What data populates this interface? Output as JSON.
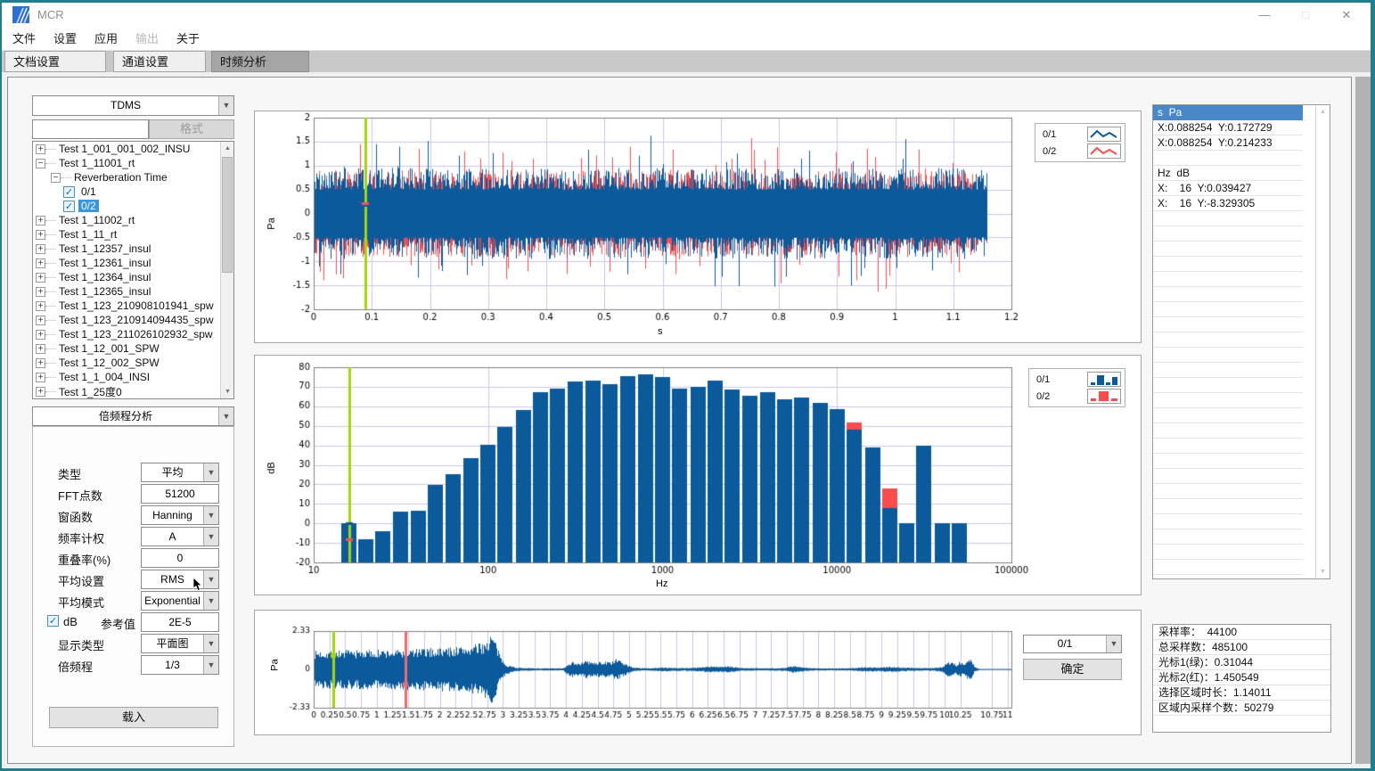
{
  "window": {
    "title": "MCR"
  },
  "menu": {
    "items": [
      {
        "label": "文件",
        "enabled": true
      },
      {
        "label": "设置",
        "enabled": true
      },
      {
        "label": "应用",
        "enabled": true
      },
      {
        "label": "输出",
        "enabled": false
      },
      {
        "label": "关于",
        "enabled": true
      }
    ]
  },
  "tabs": [
    {
      "label": "文档设置",
      "active": false
    },
    {
      "label": "通道设置",
      "active": false
    },
    {
      "label": "时频分析",
      "active": true
    }
  ],
  "sidebar": {
    "format_select_value": "TDMS",
    "filter_input_value": "",
    "format_button_label": "格式",
    "tree_items": [
      {
        "label": "Test 1_001_001_002_INSU",
        "depth": 0,
        "expander": "plus"
      },
      {
        "label": "Test 1_11001_rt",
        "depth": 0,
        "expander": "minus"
      },
      {
        "label": "Reverberation Time",
        "depth": 1,
        "expander": "minus"
      },
      {
        "label": "0/1",
        "depth": 2,
        "checked": true,
        "selected": false
      },
      {
        "label": "0/2",
        "depth": 2,
        "checked": true,
        "selected": true
      },
      {
        "label": "Test 1_11002_rt",
        "depth": 0,
        "expander": "plus"
      },
      {
        "label": "Test 1_11_rt",
        "depth": 0,
        "expander": "plus"
      },
      {
        "label": "Test 1_12357_insul",
        "depth": 0,
        "expander": "plus"
      },
      {
        "label": "Test 1_12361_insul",
        "depth": 0,
        "expander": "plus"
      },
      {
        "label": "Test 1_12364_insul",
        "depth": 0,
        "expander": "plus"
      },
      {
        "label": "Test 1_12365_insul",
        "depth": 0,
        "expander": "plus"
      },
      {
        "label": "Test 1_123_210908101941_spw",
        "depth": 0,
        "expander": "plus"
      },
      {
        "label": "Test 1_123_210914094435_spw",
        "depth": 0,
        "expander": "plus"
      },
      {
        "label": "Test 1_123_211026102932_spw",
        "depth": 0,
        "expander": "plus"
      },
      {
        "label": "Test 1_12_001_SPW",
        "depth": 0,
        "expander": "plus"
      },
      {
        "label": "Test 1_12_002_SPW",
        "depth": 0,
        "expander": "plus"
      },
      {
        "label": "Test 1_1_004_INSI",
        "depth": 0,
        "expander": "plus"
      },
      {
        "label": "Test 1_25度0",
        "depth": 0,
        "expander": "plus"
      }
    ],
    "analysis_select_value": "倍频程分析",
    "form_rows": [
      {
        "label": "类型",
        "control": "select",
        "value": "平均"
      },
      {
        "label": "FFT点数",
        "control": "input",
        "value": "51200"
      },
      {
        "label": "窗函数",
        "control": "select",
        "value": "Hanning"
      },
      {
        "label": "频率计权",
        "control": "select",
        "value": "A"
      },
      {
        "label": "重叠率(%)",
        "control": "input",
        "value": "0"
      },
      {
        "label": "平均设置",
        "control": "select",
        "value": "RMS"
      },
      {
        "label": "平均模式",
        "control": "select",
        "value": "Exponential"
      },
      {
        "checkbox_label": "dB",
        "checkbox_checked": true,
        "label": "参考值",
        "control": "input",
        "value": "2E-5"
      },
      {
        "label": "显示类型",
        "control": "select",
        "value": "平面图"
      },
      {
        "label": "倍频程",
        "control": "select",
        "value": "1/3"
      }
    ],
    "load_button_label": "载入"
  },
  "right_panel": {
    "rows": [
      {
        "text": "s  Pa",
        "selected": true
      },
      {
        "text": "X:0.088254  Y:0.172729",
        "selected": false
      },
      {
        "text": "X:0.088254  Y:0.214233",
        "selected": false
      },
      {
        "text": "",
        "selected": false
      },
      {
        "text": "Hz  dB",
        "selected": false
      },
      {
        "text": "X:    16  Y:0.039427",
        "selected": false
      },
      {
        "text": "X:    16  Y:-8.329305",
        "selected": false
      }
    ],
    "empty_rows": 24
  },
  "info_panel": {
    "rows": [
      "采样率：  44100",
      "总采样数：485100",
      "光标1(绿)：0.31044",
      "光标2(红)：1.450549",
      "选择区域时长：1.14011",
      "区域内采样个数：50279"
    ]
  },
  "bottom_controls": {
    "channel_select_value": "0/1",
    "confirm_button_label": "确定"
  },
  "colors": {
    "window_border": "#1f7f8e",
    "series_blue": "#0b5a9b",
    "series_red": "#f94d4d",
    "cursor_green": "#a4d40a",
    "cursor_red": "#ee6b6b",
    "grid": "#c9c9e8",
    "axis": "#7f7f7f",
    "selection_blue": "#3a95e4",
    "header_blue": "#4a87c7"
  },
  "chart_data": [
    {
      "type": "line",
      "name": "time-waveform",
      "xlabel": "s",
      "ylabel": "Pa",
      "xlim": [
        0,
        1.2
      ],
      "ylim": [
        -2,
        2
      ],
      "xtick_labels": [
        "0",
        "0.1",
        "0.2",
        "0.3",
        "0.4",
        "0.5",
        "0.6",
        "0.7",
        "0.8",
        "0.9",
        "1",
        "1.1",
        "1.2"
      ],
      "ytick_labels": [
        "2",
        "1.5",
        "1",
        "0.5",
        "0",
        "-0.5",
        "-1",
        "-1.5",
        "-2"
      ],
      "grid": true,
      "legend": [
        {
          "name": "0/1",
          "color": "#0b5a9b",
          "style": "line"
        },
        {
          "name": "0/2",
          "color": "#f94d4d",
          "style": "line"
        }
      ],
      "signal_end": 1.16,
      "cursor": {
        "x": 0.088254,
        "color": "#a4d40a",
        "points": [
          {
            "y": 0.172729,
            "color": "#0b5a9b"
          },
          {
            "y": 0.214233,
            "color": "#f94d4d"
          }
        ]
      }
    },
    {
      "type": "bar",
      "name": "octave-spectrum",
      "xlabel": "Hz",
      "ylabel": "dB",
      "xscale": "log",
      "xlim": [
        10,
        100000
      ],
      "ylim": [
        -20,
        80
      ],
      "xtick_labels": [
        "10",
        "100",
        "1000",
        "10000",
        "100000"
      ],
      "ytick_labels": [
        "80",
        "70",
        "60",
        "50",
        "40",
        "30",
        "20",
        "10",
        "0",
        "-10",
        "-20"
      ],
      "grid": true,
      "legend": [
        {
          "name": "0/1",
          "color": "#0b5a9b",
          "style": "bar"
        },
        {
          "name": "0/2",
          "color": "#f94d4d",
          "style": "bar"
        }
      ],
      "categories": [
        16,
        20,
        25,
        31.5,
        40,
        50,
        63,
        80,
        100,
        125,
        160,
        200,
        250,
        315,
        400,
        500,
        630,
        800,
        1000,
        1250,
        1600,
        2000,
        2500,
        3150,
        4000,
        5000,
        6300,
        8000,
        10000,
        12500,
        16000,
        20000,
        25000,
        31500,
        40000,
        50000
      ],
      "series": [
        {
          "name": "0/1",
          "color": "#0b5a9b",
          "values": [
            0.04,
            -8.33,
            -4,
            6.1,
            6.3,
            19.7,
            25.2,
            33.4,
            40.3,
            49.6,
            57.9,
            67.2,
            68.9,
            72.7,
            73,
            71.2,
            75.4,
            76.5,
            75,
            68.9,
            69.8,
            73,
            68.6,
            65.3,
            67.2,
            63.6,
            64.7,
            61.7,
            58.6,
            48,
            38.8,
            8,
            0,
            40,
            0,
            0
          ]
        },
        {
          "name": "0/2",
          "color": "#f94d4d",
          "visible_values": [
            {
              "freq": 12500,
              "value": 51.5
            },
            {
              "freq": 20000,
              "value": 18
            }
          ]
        }
      ],
      "cursor": {
        "x": 16,
        "color": "#a4d40a",
        "points": [
          {
            "y": 0.039427,
            "color": "#0b5a9b"
          },
          {
            "y": -8.329305,
            "color": "#f94d4d"
          }
        ]
      }
    },
    {
      "type": "line",
      "name": "overview-waveform",
      "xlabel": "",
      "ylabel": "Pa",
      "xlim": [
        0,
        11.06
      ],
      "ylim": [
        -2.33,
        2.33
      ],
      "xtick_labels": [
        "0",
        "0.25",
        "0.5",
        "0.75",
        "1",
        "1.25",
        "1.5",
        "1.75",
        "2",
        "2.25",
        "2.5",
        "2.75",
        "3",
        "3.25",
        "3.5",
        "3.75",
        "4",
        "4.25",
        "4.5",
        "4.75",
        "5",
        "5.25",
        "5.5",
        "5.75",
        "6",
        "6.25",
        "6.5",
        "6.75",
        "7",
        "7.25",
        "7.5",
        "7.75",
        "8",
        "8.25",
        "8.5",
        "8.75",
        "9",
        "9.25",
        "9.5",
        "9.75",
        "10",
        "10.25",
        "10.75",
        "11"
      ],
      "ytick_labels": [
        "2.33",
        "0",
        "-2.33"
      ],
      "grid": true,
      "series": [
        {
          "name": "0/1",
          "color": "#0b5a9b"
        }
      ],
      "envelope": [
        [
          0,
          1.15
        ],
        [
          0.6,
          1.2
        ],
        [
          1.2,
          1.2
        ],
        [
          1.8,
          1.3
        ],
        [
          2.3,
          1.4
        ],
        [
          2.6,
          1.55
        ],
        [
          2.75,
          1.85
        ],
        [
          2.82,
          2.3
        ],
        [
          2.88,
          1.7
        ],
        [
          2.95,
          0.8
        ],
        [
          3.05,
          0.3
        ],
        [
          3.2,
          0.12
        ],
        [
          3.5,
          0.07
        ],
        [
          3.95,
          0.07
        ],
        [
          4.02,
          0.35
        ],
        [
          4.1,
          0.5
        ],
        [
          4.2,
          0.38
        ],
        [
          4.32,
          0.55
        ],
        [
          4.45,
          0.42
        ],
        [
          4.55,
          0.5
        ],
        [
          4.68,
          0.45
        ],
        [
          4.8,
          0.65
        ],
        [
          4.9,
          0.45
        ],
        [
          5.0,
          0.22
        ],
        [
          5.1,
          0.1
        ],
        [
          5.35,
          0.08
        ],
        [
          5.55,
          0.13
        ],
        [
          5.75,
          0.1
        ],
        [
          6.0,
          0.1
        ],
        [
          6.2,
          0.16
        ],
        [
          6.35,
          0.2
        ],
        [
          6.5,
          0.17
        ],
        [
          6.6,
          0.2
        ],
        [
          6.75,
          0.1
        ],
        [
          7.1,
          0.07
        ],
        [
          7.45,
          0.1
        ],
        [
          7.6,
          0.22
        ],
        [
          7.8,
          0.1
        ],
        [
          8.1,
          0.07
        ],
        [
          8.5,
          0.08
        ],
        [
          8.75,
          0.15
        ],
        [
          8.95,
          0.12
        ],
        [
          9.15,
          0.17
        ],
        [
          9.35,
          0.12
        ],
        [
          9.6,
          0.09
        ],
        [
          9.85,
          0.1
        ],
        [
          9.98,
          0.2
        ],
        [
          10.05,
          0.55
        ],
        [
          10.12,
          0.45
        ],
        [
          10.18,
          0.3
        ],
        [
          10.24,
          0.5
        ],
        [
          10.3,
          0.3
        ],
        [
          10.36,
          0.6
        ],
        [
          10.42,
          0.7
        ],
        [
          10.47,
          0.15
        ],
        [
          10.55,
          0.03
        ],
        [
          11.06,
          0.03
        ]
      ],
      "cursors": [
        {
          "x": 0.31044,
          "color": "#a4d40a",
          "dot_y": 0.84
        },
        {
          "x": 1.450549,
          "color": "#ee6b6b",
          "dot_y": -0.9
        }
      ]
    }
  ]
}
